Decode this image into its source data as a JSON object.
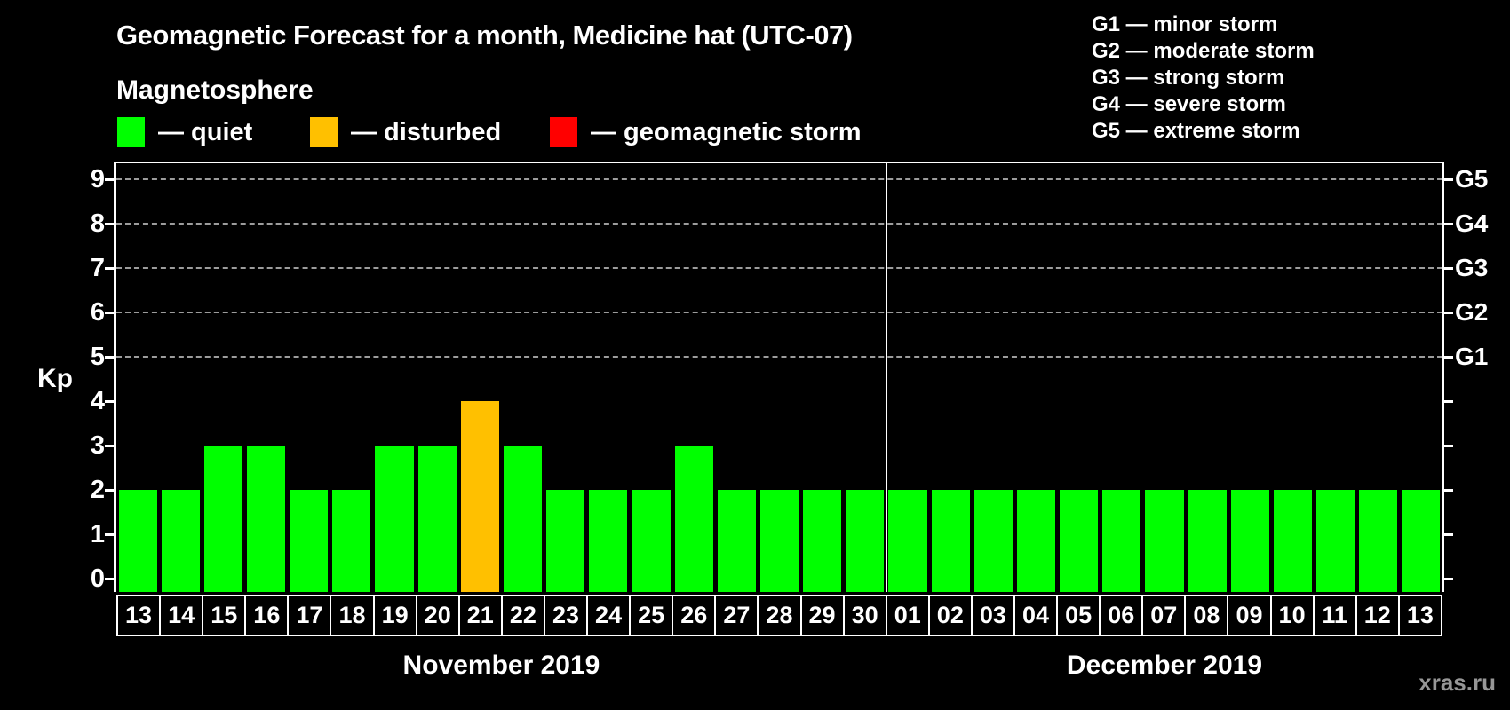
{
  "header": {
    "title": "Geomagnetic Forecast for a month, Medicine hat (UTC-07)"
  },
  "magnetosphere_legend": {
    "title": "Magnetosphere",
    "items": [
      {
        "status": "quiet",
        "label": "— quiet",
        "color": "#00ff00"
      },
      {
        "status": "disturbed",
        "label": "— disturbed",
        "color": "#ffc000"
      },
      {
        "status": "storm",
        "label": "— geomagnetic storm",
        "color": "#ff0000"
      }
    ]
  },
  "gscale_legend": {
    "items": [
      {
        "label": "G1 — minor storm"
      },
      {
        "label": "G2 — moderate storm"
      },
      {
        "label": "G3 — strong storm"
      },
      {
        "label": "G4 — severe storm"
      },
      {
        "label": "G5 — extreme storm"
      }
    ]
  },
  "watermark": "xras.ru",
  "chart_data": {
    "type": "bar",
    "title": "Geomagnetic Forecast for a month, Medicine hat (UTC-07)",
    "ylabel": "Kp",
    "ylim": [
      -0.3,
      9.36
    ],
    "yticks": [
      0,
      1,
      2,
      3,
      4,
      5,
      6,
      7,
      8,
      9
    ],
    "grid": "dashed horizontal lines at Kp 5-9",
    "legend_position": "top",
    "right_axis": [
      {
        "kp": 5,
        "label": "G1"
      },
      {
        "kp": 6,
        "label": "G2"
      },
      {
        "kp": 7,
        "label": "G3"
      },
      {
        "kp": 8,
        "label": "G4"
      },
      {
        "kp": 9,
        "label": "G5"
      }
    ],
    "status_colors": {
      "quiet": "#00ff00",
      "disturbed": "#ffc000",
      "storm": "#ff0000"
    },
    "months": [
      {
        "label": "November 2019",
        "days": [
          {
            "day": "13",
            "kp": 2,
            "status": "quiet"
          },
          {
            "day": "14",
            "kp": 2,
            "status": "quiet"
          },
          {
            "day": "15",
            "kp": 3,
            "status": "quiet"
          },
          {
            "day": "16",
            "kp": 3,
            "status": "quiet"
          },
          {
            "day": "17",
            "kp": 2,
            "status": "quiet"
          },
          {
            "day": "18",
            "kp": 2,
            "status": "quiet"
          },
          {
            "day": "19",
            "kp": 3,
            "status": "quiet"
          },
          {
            "day": "20",
            "kp": 3,
            "status": "quiet"
          },
          {
            "day": "21",
            "kp": 4,
            "status": "disturbed"
          },
          {
            "day": "22",
            "kp": 3,
            "status": "quiet"
          },
          {
            "day": "23",
            "kp": 2,
            "status": "quiet"
          },
          {
            "day": "24",
            "kp": 2,
            "status": "quiet"
          },
          {
            "day": "25",
            "kp": 2,
            "status": "quiet"
          },
          {
            "day": "26",
            "kp": 3,
            "status": "quiet"
          },
          {
            "day": "27",
            "kp": 2,
            "status": "quiet"
          },
          {
            "day": "28",
            "kp": 2,
            "status": "quiet"
          },
          {
            "day": "29",
            "kp": 2,
            "status": "quiet"
          },
          {
            "day": "30",
            "kp": 2,
            "status": "quiet"
          }
        ]
      },
      {
        "label": "December 2019",
        "days": [
          {
            "day": "01",
            "kp": 2,
            "status": "quiet"
          },
          {
            "day": "02",
            "kp": 2,
            "status": "quiet"
          },
          {
            "day": "03",
            "kp": 2,
            "status": "quiet"
          },
          {
            "day": "04",
            "kp": 2,
            "status": "quiet"
          },
          {
            "day": "05",
            "kp": 2,
            "status": "quiet"
          },
          {
            "day": "06",
            "kp": 2,
            "status": "quiet"
          },
          {
            "day": "07",
            "kp": 2,
            "status": "quiet"
          },
          {
            "day": "08",
            "kp": 2,
            "status": "quiet"
          },
          {
            "day": "09",
            "kp": 2,
            "status": "quiet"
          },
          {
            "day": "10",
            "kp": 2,
            "status": "quiet"
          },
          {
            "day": "11",
            "kp": 2,
            "status": "quiet"
          },
          {
            "day": "12",
            "kp": 2,
            "status": "quiet"
          },
          {
            "day": "13",
            "kp": 2,
            "status": "quiet"
          }
        ]
      }
    ]
  }
}
